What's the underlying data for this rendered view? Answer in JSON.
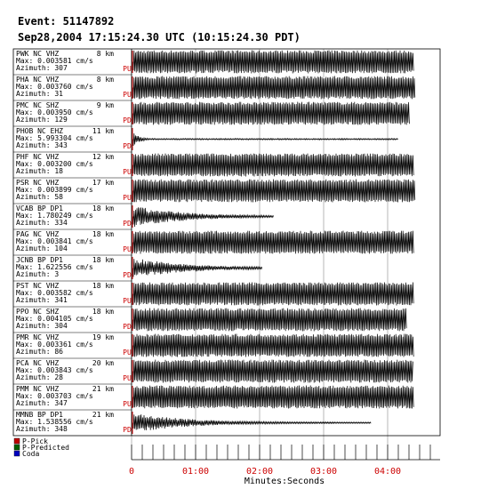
{
  "header": {
    "title": "Event: 51147892",
    "subtitle": "Sep28,2004 17:15:24.30 UTC (10:15:24.30 PDT)"
  },
  "stations": [
    {
      "name": "PWK  NC VHZ",
      "distance": "8 km",
      "max": "Max: 0.003581 cm/s",
      "azimuth": "Azimuth: 307",
      "pick": "PU"
    },
    {
      "name": "PHA  NC VHZ",
      "distance": "8 km",
      "max": "Max: 0.003760 cm/s",
      "azimuth": "Azimuth: 31",
      "pick": "PU"
    },
    {
      "name": "PMC  NC SHZ",
      "distance": "9 km",
      "max": "Max: 0.003950 cm/s",
      "azimuth": "Azimuth: 129",
      "pick": "PD"
    },
    {
      "name": "PHOB NC EHZ",
      "distance": "11 km",
      "max": "Max: 5.993304 cm/s",
      "azimuth": "Azimuth: 343",
      "pick": "PD"
    },
    {
      "name": "PHF  NC VHZ",
      "distance": "12 km",
      "max": "Max: 0.003200 cm/s",
      "azimuth": "Azimuth: 18",
      "pick": "PU"
    },
    {
      "name": "PSR  NC VHZ",
      "distance": "17 km",
      "max": "Max: 0.003899 cm/s",
      "azimuth": "Azimuth: 58",
      "pick": "PU"
    },
    {
      "name": "VCAB BP DP1",
      "distance": "18 km",
      "max": "Max: 1.780249 cm/s",
      "azimuth": "Azimuth: 334",
      "pick": "PD"
    },
    {
      "name": "PAG  NC VHZ",
      "distance": "18 km",
      "max": "Max: 0.003841 cm/s",
      "azimuth": "Azimuth: 104",
      "pick": "PU"
    },
    {
      "name": "JCNB BP DP1",
      "distance": "18 km",
      "max": "Max: 1.622556 cm/s",
      "azimuth": "Azimuth: 3",
      "pick": "PD"
    },
    {
      "name": "PST  NC VHZ",
      "distance": "18 km",
      "max": "Max: 0.003582 cm/s",
      "azimuth": "Azimuth: 341",
      "pick": "PU"
    },
    {
      "name": "PPO  NC SHZ",
      "distance": "18 km",
      "max": "Max: 0.004105 cm/s",
      "azimuth": "Azimuth: 304",
      "pick": "PD"
    },
    {
      "name": "PMR  NC VHZ",
      "distance": "19 km",
      "max": "Max: 0.003361 cm/s",
      "azimuth": "Azimuth: 86",
      "pick": "PU"
    },
    {
      "name": "PCA  NC VHZ",
      "distance": "20 km",
      "max": "Max: 0.003843 cm/s",
      "azimuth": "Azimuth: 28",
      "pick": "PU"
    },
    {
      "name": "PMM  NC VHZ",
      "distance": "21 km",
      "max": "Max: 0.003703 cm/s",
      "azimuth": "Azimuth: 347",
      "pick": "PU"
    },
    {
      "name": "MMNB BP DP1",
      "distance": "21 km",
      "max": "Max: 1.538556 cm/s",
      "azimuth": "Azimuth: 348",
      "pick": "PD"
    }
  ],
  "legend": [
    {
      "label": "P-Pick",
      "color": "#c00000"
    },
    {
      "label": "P-Predicted",
      "color": "#006000"
    },
    {
      "label": "Coda",
      "color": "#0000c0"
    }
  ],
  "time_axis": {
    "labels": [
      "0",
      "01:00",
      "02:00",
      "03:00",
      "04:00"
    ],
    "title": "Minutes:Seconds"
  }
}
